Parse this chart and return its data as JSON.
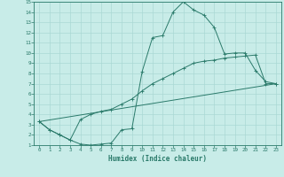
{
  "xlabel": "Humidex (Indice chaleur)",
  "bg_color": "#c8ece8",
  "grid_color": "#aad8d4",
  "line_color": "#2a7a6a",
  "xlim": [
    -0.5,
    23.5
  ],
  "ylim": [
    1,
    15
  ],
  "xticks": [
    0,
    1,
    2,
    3,
    4,
    5,
    6,
    7,
    8,
    9,
    10,
    11,
    12,
    13,
    14,
    15,
    16,
    17,
    18,
    19,
    20,
    21,
    22,
    23
  ],
  "yticks": [
    1,
    2,
    3,
    4,
    5,
    6,
    7,
    8,
    9,
    10,
    11,
    12,
    13,
    14,
    15
  ],
  "line1_x": [
    0,
    1,
    2,
    3,
    4,
    5,
    6,
    7,
    8,
    9,
    10,
    11,
    12,
    13,
    14,
    15,
    16,
    17,
    18,
    19,
    20,
    21,
    22,
    23
  ],
  "line1_y": [
    3.3,
    2.5,
    2.0,
    1.5,
    1.1,
    1.0,
    1.1,
    1.2,
    2.5,
    2.6,
    8.2,
    11.5,
    11.7,
    14.0,
    15.0,
    14.2,
    13.7,
    12.5,
    9.9,
    10.0,
    10.0,
    8.3,
    7.2,
    7.0
  ],
  "line2_x": [
    0,
    1,
    2,
    3,
    4,
    5,
    6,
    7,
    8,
    9,
    10,
    11,
    12,
    13,
    14,
    15,
    16,
    17,
    18,
    19,
    20,
    21,
    22,
    23
  ],
  "line2_y": [
    3.3,
    2.5,
    2.0,
    1.5,
    3.5,
    4.0,
    4.3,
    4.5,
    5.0,
    5.5,
    6.3,
    7.0,
    7.5,
    8.0,
    8.5,
    9.0,
    9.2,
    9.3,
    9.5,
    9.6,
    9.7,
    9.8,
    7.0,
    7.0
  ],
  "line3_x": [
    0,
    23
  ],
  "line3_y": [
    3.3,
    7.0
  ]
}
